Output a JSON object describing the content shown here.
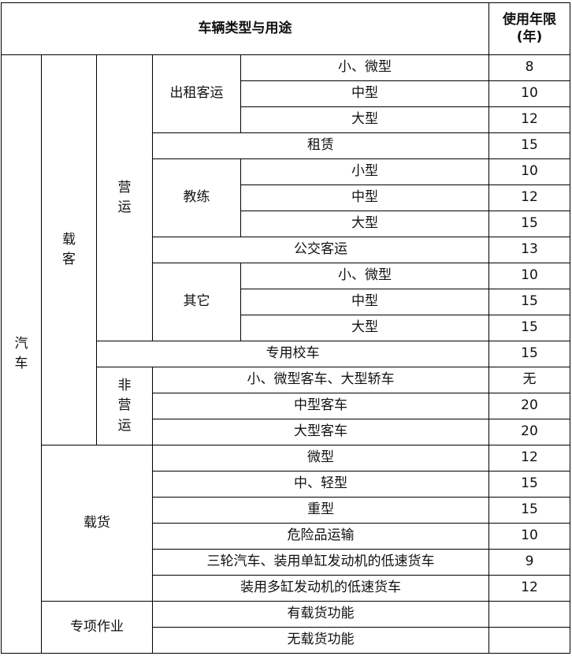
{
  "table": {
    "header": {
      "type": "车辆类型与用途",
      "years": "使用年限",
      "years_unit": "(年)"
    },
    "vehicle": "汽车",
    "passenger": "载客",
    "operating": "营运",
    "non_operating": "非营运",
    "cargo": "载货",
    "special": "专项作业",
    "taxi": "出租客运",
    "coach": "教练",
    "other": "其它",
    "rows": [
      {
        "item": "小、微型",
        "years": 8
      },
      {
        "item": "中型",
        "years": 10
      },
      {
        "item": "大型",
        "years": 12
      },
      {
        "item": "租赁",
        "years": 15
      },
      {
        "item": "小型",
        "years": 10
      },
      {
        "item": "中型",
        "years": 12
      },
      {
        "item": "大型",
        "years": 15
      },
      {
        "item": "公交客运",
        "years": 13
      },
      {
        "item": "小、微型",
        "years": 10
      },
      {
        "item": "中型",
        "years": 15
      },
      {
        "item": "大型",
        "years": 15
      },
      {
        "item": "专用校车",
        "years": 15
      },
      {
        "item": "小、微型客车、大型轿车",
        "years": "无"
      },
      {
        "item": "中型客车",
        "years": 20
      },
      {
        "item": "大型客车",
        "years": 20
      },
      {
        "item": "微型",
        "years": 12
      },
      {
        "item": "中、轻型",
        "years": 15
      },
      {
        "item": "重型",
        "years": 15
      },
      {
        "item": "危险品运输",
        "years": 10
      },
      {
        "item": "三轮汽车、装用单缸发动机的低速货车",
        "years": 9
      },
      {
        "item": "装用多缸发动机的低速货车",
        "years": 12
      },
      {
        "item": "有载货功能"
      },
      {
        "item": "无载货功能"
      }
    ]
  }
}
